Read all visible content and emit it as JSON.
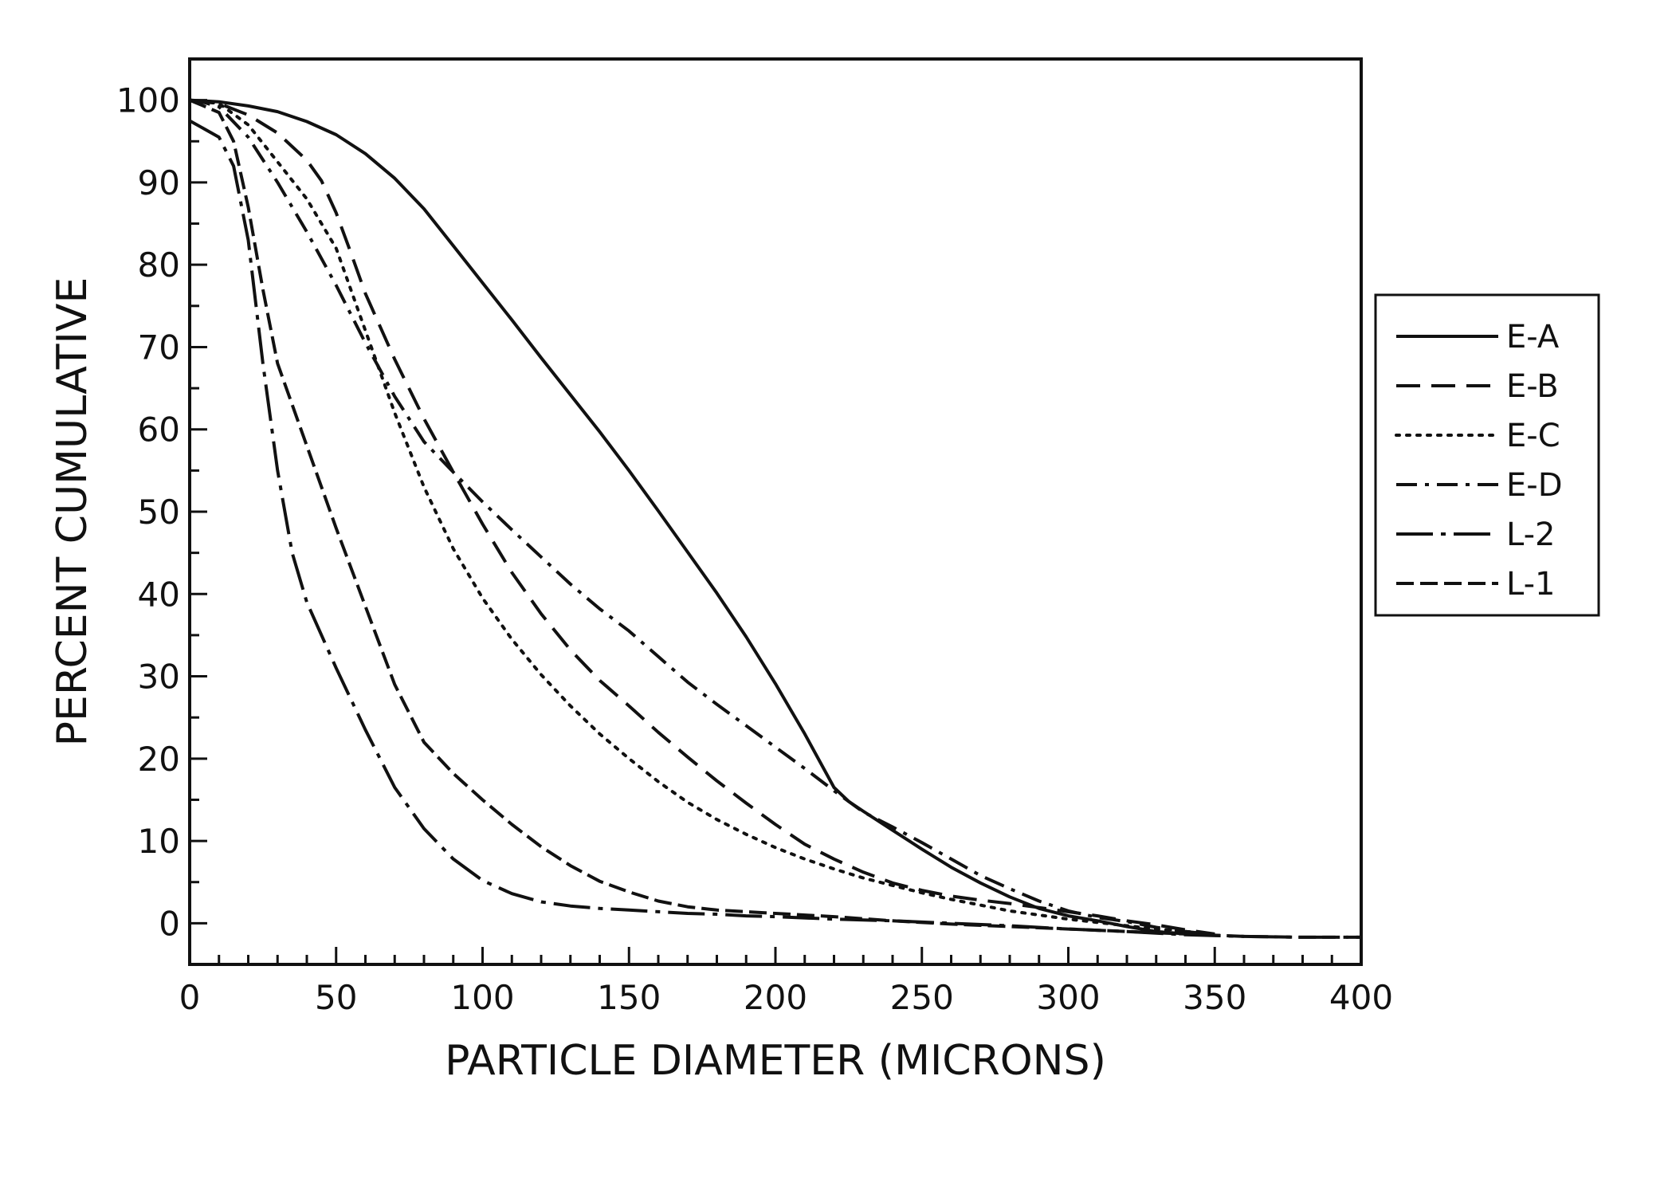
{
  "chart_data": {
    "type": "line",
    "title": "",
    "xlabel": "PARTICLE DIAMETER (MICRONS)",
    "ylabel": "PERCENT CUMULATIVE",
    "xlim": [
      0,
      400
    ],
    "ylim": [
      -5,
      105
    ],
    "x_ticks": [
      0,
      50,
      100,
      150,
      200,
      250,
      300,
      350,
      400
    ],
    "y_ticks": [
      0,
      10,
      20,
      30,
      40,
      50,
      60,
      70,
      80,
      90,
      100
    ],
    "grid": false,
    "legend_position": "right",
    "series": [
      {
        "name": "E-A",
        "style": "solid",
        "x": [
          0,
          10,
          20,
          30,
          40,
          50,
          60,
          70,
          80,
          90,
          100,
          110,
          120,
          130,
          140,
          150,
          160,
          170,
          180,
          190,
          200,
          210,
          220,
          225,
          230,
          240,
          250,
          260,
          270,
          280,
          290,
          300,
          310,
          320,
          330,
          340,
          350
        ],
        "y": [
          100,
          99.8,
          99.3,
          98.6,
          97.4,
          95.8,
          93.5,
          90.5,
          86.8,
          82.3,
          77.8,
          73.3,
          68.7,
          64.2,
          59.7,
          55,
          50.1,
          45.1,
          40.1,
          34.8,
          29.1,
          23,
          16.5,
          14.8,
          13.6,
          11.3,
          9,
          6.8,
          4.9,
          3.2,
          1.8,
          0.9,
          0.3,
          -0.4,
          -1,
          -1.3,
          -1.4
        ]
      },
      {
        "name": "E-B",
        "style": "dashed",
        "x": [
          0,
          10,
          20,
          30,
          40,
          45,
          50,
          55,
          60,
          70,
          80,
          90,
          100,
          110,
          120,
          130,
          140,
          150,
          160,
          170,
          180,
          190,
          200,
          210,
          220,
          230,
          240,
          250,
          260,
          270,
          280,
          290,
          300,
          310,
          320,
          330,
          340,
          350
        ],
        "y": [
          100,
          99.6,
          98.2,
          96,
          92.7,
          90.2,
          86.3,
          81.5,
          76.5,
          68.5,
          61.3,
          54.8,
          48.5,
          42.6,
          37.6,
          33.2,
          29.5,
          26.4,
          23.2,
          20.2,
          17.3,
          14.6,
          12,
          9.6,
          7.8,
          6.2,
          4.9,
          4,
          3.3,
          2.8,
          2.4,
          1.9,
          1.4,
          0.9,
          0.3,
          -0.2,
          -0.8,
          -1.3
        ]
      },
      {
        "name": "E-C",
        "style": "dotted",
        "x": [
          0,
          10,
          20,
          30,
          40,
          50,
          60,
          70,
          80,
          90,
          100,
          110,
          120,
          130,
          140,
          150,
          160,
          170,
          180,
          190,
          200,
          210,
          220,
          230,
          240,
          250,
          260,
          270,
          280,
          290,
          300,
          310,
          320,
          330,
          340,
          350
        ],
        "y": [
          100,
          99.6,
          97,
          92.5,
          88,
          82,
          72,
          62,
          53,
          45.5,
          39.5,
          34.5,
          30.2,
          26.4,
          23,
          20,
          17.2,
          14.7,
          12.6,
          10.8,
          9.2,
          7.8,
          6.6,
          5.5,
          4.6,
          3.7,
          2.9,
          2.2,
          1.5,
          1,
          0.5,
          0.1,
          -0.3,
          -0.7,
          -1,
          -1.3
        ]
      },
      {
        "name": "E-D",
        "style": "dash-dot",
        "x": [
          0,
          5,
          10,
          20,
          30,
          40,
          50,
          60,
          70,
          80,
          90,
          100,
          110,
          120,
          130,
          140,
          150,
          160,
          170,
          180,
          190,
          200,
          210,
          220,
          230,
          240,
          250,
          260,
          270,
          280,
          290,
          300,
          310,
          320,
          330,
          340,
          350
        ],
        "y": [
          100,
          99.7,
          99.2,
          95.5,
          90,
          84,
          77.5,
          70.5,
          64,
          58.5,
          54.8,
          51.2,
          47.8,
          44.5,
          41.2,
          38.2,
          35.5,
          32.4,
          29.3,
          26.6,
          24,
          21.4,
          18.8,
          16.1,
          13.5,
          11.7,
          9.8,
          7.8,
          5.8,
          4.2,
          2.7,
          1.5,
          0.7,
          0.2,
          -0.5,
          -1,
          -1.4
        ]
      },
      {
        "name": "L-2",
        "style": "long-dash-dot",
        "x": [
          0,
          10,
          15,
          20,
          25,
          30,
          35,
          40,
          50,
          60,
          70,
          80,
          90,
          100,
          110,
          120,
          130,
          140,
          150,
          160,
          170,
          180,
          190,
          200,
          220,
          240,
          260,
          280,
          300,
          320,
          340,
          360,
          380,
          400
        ],
        "y": [
          97.5,
          95.5,
          92,
          83,
          68,
          55,
          45,
          39,
          31,
          23.5,
          16.5,
          11.5,
          7.8,
          5.2,
          3.6,
          2.6,
          2.1,
          1.8,
          1.6,
          1.4,
          1.2,
          1.1,
          0.9,
          0.8,
          0.5,
          0.3,
          0,
          -0.3,
          -0.7,
          -1,
          -1.4,
          -1.6,
          -1.7,
          -1.7
        ]
      },
      {
        "name": "L-1",
        "style": "long-dash",
        "x": [
          0,
          10,
          15,
          20,
          25,
          30,
          40,
          50,
          60,
          70,
          80,
          90,
          100,
          110,
          120,
          130,
          140,
          150,
          160,
          170,
          180,
          190,
          200,
          220,
          240,
          260,
          280,
          300,
          320,
          340,
          360,
          380,
          400
        ],
        "y": [
          100,
          98.5,
          95,
          87,
          77,
          68,
          58,
          48,
          38.5,
          29,
          22,
          18.2,
          15,
          12,
          9.3,
          7,
          5.1,
          3.8,
          2.7,
          2,
          1.6,
          1.4,
          1.2,
          0.8,
          0.3,
          -0.1,
          -0.4,
          -0.7,
          -1,
          -1.3,
          -1.6,
          -1.7,
          -1.7
        ]
      }
    ]
  }
}
